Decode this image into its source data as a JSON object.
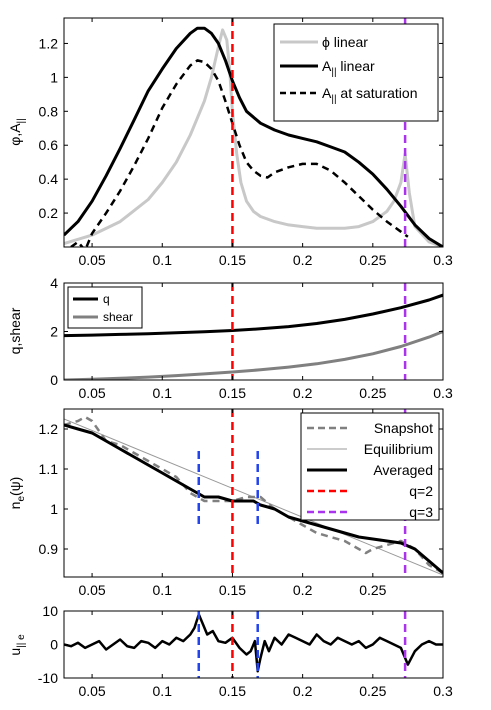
{
  "chart_data": [
    {
      "type": "line",
      "ylabel_base": "φ,A",
      "ylabel_sub": "||",
      "xlim": [
        0.03,
        0.3
      ],
      "ylim": [
        0,
        1.35
      ],
      "xticks": [
        "0.05",
        "0.1",
        "0.15",
        "0.2",
        "0.25",
        "0.3"
      ],
      "xtick_values": [
        0.05,
        0.1,
        0.15,
        0.2,
        0.25,
        0.3
      ],
      "yticks": [
        "0.2",
        "0.4",
        "0.6",
        "0.8",
        "1",
        "1.2"
      ],
      "ytick_values": [
        0.2,
        0.4,
        0.6,
        0.8,
        1,
        1.2
      ],
      "legend_position": "top-right",
      "vlines": [
        {
          "x": 0.15,
          "color": "#ff0000"
        },
        {
          "x": 0.273,
          "color": "#aa33ee"
        }
      ],
      "series": [
        {
          "name": "ϕ linear",
          "color": "#c8c8c8",
          "dash": "solid",
          "width": 3,
          "x": [
            0.03,
            0.05,
            0.07,
            0.09,
            0.1,
            0.11,
            0.12,
            0.13,
            0.135,
            0.14,
            0.143,
            0.146,
            0.148,
            0.15,
            0.153,
            0.156,
            0.16,
            0.165,
            0.17,
            0.18,
            0.19,
            0.2,
            0.21,
            0.22,
            0.23,
            0.24,
            0.25,
            0.26,
            0.265,
            0.27,
            0.273,
            0.276,
            0.28,
            0.29,
            0.3
          ],
          "y": [
            0.02,
            0.07,
            0.15,
            0.28,
            0.38,
            0.5,
            0.66,
            0.86,
            1.0,
            1.18,
            1.28,
            1.22,
            1.05,
            0.8,
            0.55,
            0.38,
            0.27,
            0.21,
            0.18,
            0.15,
            0.13,
            0.12,
            0.11,
            0.11,
            0.11,
            0.12,
            0.15,
            0.21,
            0.27,
            0.38,
            0.55,
            0.32,
            0.12,
            0.03,
            0.0
          ]
        },
        {
          "name": "A linear",
          "color": "#000000",
          "dash": "solid",
          "width": 3,
          "x": [
            0.03,
            0.04,
            0.05,
            0.06,
            0.07,
            0.08,
            0.09,
            0.1,
            0.11,
            0.12,
            0.125,
            0.13,
            0.135,
            0.14,
            0.145,
            0.15,
            0.155,
            0.16,
            0.17,
            0.18,
            0.19,
            0.2,
            0.21,
            0.22,
            0.23,
            0.24,
            0.25,
            0.26,
            0.27,
            0.28,
            0.29,
            0.3
          ],
          "y": [
            0.07,
            0.15,
            0.27,
            0.42,
            0.58,
            0.75,
            0.92,
            1.05,
            1.17,
            1.26,
            1.29,
            1.29,
            1.26,
            1.2,
            1.1,
            0.98,
            0.88,
            0.8,
            0.73,
            0.69,
            0.66,
            0.64,
            0.62,
            0.59,
            0.56,
            0.5,
            0.43,
            0.34,
            0.24,
            0.13,
            0.05,
            0.0
          ]
        },
        {
          "name": "A at saturation",
          "color": "#000000",
          "dash": "dashed",
          "width": 2.5,
          "x": [
            0.035,
            0.04,
            0.045,
            0.05,
            0.06,
            0.07,
            0.08,
            0.09,
            0.1,
            0.11,
            0.12,
            0.125,
            0.13,
            0.135,
            0.14,
            0.145,
            0.15,
            0.155,
            0.16,
            0.165,
            0.17,
            0.175,
            0.18,
            0.19,
            0.2,
            0.21,
            0.22,
            0.23,
            0.24,
            0.25,
            0.26,
            0.27,
            0.275
          ],
          "y": [
            0.0,
            0.03,
            -0.02,
            0.08,
            0.2,
            0.33,
            0.48,
            0.64,
            0.82,
            0.96,
            1.07,
            1.1,
            1.09,
            1.05,
            0.98,
            0.86,
            0.73,
            0.6,
            0.5,
            0.45,
            0.42,
            0.41,
            0.44,
            0.47,
            0.49,
            0.49,
            0.45,
            0.38,
            0.3,
            0.22,
            0.15,
            0.09,
            0.06
          ]
        }
      ]
    },
    {
      "type": "line",
      "ylabel": "q,shear",
      "xlim": [
        0.03,
        0.3
      ],
      "ylim": [
        0,
        4
      ],
      "xticks": [
        "0.05",
        "0.1",
        "0.15",
        "0.2",
        "0.25",
        "0.3"
      ],
      "xtick_values": [
        0.05,
        0.1,
        0.15,
        0.2,
        0.25,
        0.3
      ],
      "yticks": [
        "0",
        "2",
        "4"
      ],
      "ytick_values": [
        0,
        2,
        4
      ],
      "legend_position": "top-left",
      "vlines": [
        {
          "x": 0.15,
          "color": "#ff0000"
        },
        {
          "x": 0.273,
          "color": "#aa33ee"
        }
      ],
      "series": [
        {
          "name": "q",
          "color": "#000000",
          "dash": "solid",
          "width": 3,
          "x": [
            0.03,
            0.05,
            0.07,
            0.09,
            0.11,
            0.13,
            0.15,
            0.17,
            0.19,
            0.21,
            0.23,
            0.25,
            0.27,
            0.29,
            0.3
          ],
          "y": [
            1.83,
            1.85,
            1.88,
            1.91,
            1.95,
            1.99,
            2.04,
            2.11,
            2.2,
            2.33,
            2.5,
            2.72,
            2.98,
            3.3,
            3.5
          ]
        },
        {
          "name": "shear",
          "color": "#808080",
          "dash": "solid",
          "width": 3,
          "x": [
            0.03,
            0.05,
            0.07,
            0.09,
            0.11,
            0.13,
            0.15,
            0.17,
            0.19,
            0.21,
            0.23,
            0.25,
            0.27,
            0.29,
            0.3
          ],
          "y": [
            0.0,
            0.03,
            0.07,
            0.12,
            0.18,
            0.25,
            0.33,
            0.42,
            0.53,
            0.67,
            0.85,
            1.08,
            1.38,
            1.77,
            2.0
          ]
        }
      ]
    },
    {
      "type": "line",
      "ylabel_base": "n",
      "ylabel_sub": "e",
      "ylabel_tail": "(ψ)",
      "xlim": [
        0.03,
        0.3
      ],
      "ylim": [
        0.83,
        1.25
      ],
      "xticks": [
        "0.05",
        "0.1",
        "0.15",
        "0.2",
        "0.25"
      ],
      "xtick_values": [
        0.05,
        0.1,
        0.15,
        0.2,
        0.25
      ],
      "yticks": [
        "0.9",
        "1",
        "1.1",
        "1.2"
      ],
      "ytick_values": [
        0.9,
        1.0,
        1.1,
        1.2
      ],
      "legend_position": "top-right",
      "vlines": [
        {
          "x": 0.15,
          "color": "#ff0000"
        },
        {
          "x": 0.273,
          "color": "#aa33ee"
        },
        {
          "x": 0.126,
          "color": "#2244ee",
          "ymin": 0.95,
          "ymax": 1.145
        },
        {
          "x": 0.168,
          "color": "#2244ee",
          "ymin": 0.95,
          "ymax": 1.145
        }
      ],
      "legend": [
        {
          "label": "Snapshot",
          "color": "#808080",
          "dash": "dashed",
          "width": 2.5
        },
        {
          "label": "Equilibrium",
          "color": "#999999",
          "dash": "solid",
          "width": 1
        },
        {
          "label": "Averaged",
          "color": "#000000",
          "dash": "solid",
          "width": 3
        },
        {
          "label": "q=2",
          "color": "#ff0000",
          "dash": "dashed",
          "width": 2.5
        },
        {
          "label": "q=3",
          "color": "#aa33ee",
          "dash": "dashed",
          "width": 2.5
        }
      ],
      "series": [
        {
          "name": "Equilibrium",
          "color": "#999999",
          "dash": "solid",
          "width": 1,
          "x": [
            0.03,
            0.3
          ],
          "y": [
            1.225,
            0.835
          ]
        },
        {
          "name": "Snapshot",
          "color": "#808080",
          "dash": "dashed",
          "width": 2.5,
          "x": [
            0.03,
            0.04,
            0.045,
            0.05,
            0.06,
            0.07,
            0.08,
            0.09,
            0.1,
            0.11,
            0.12,
            0.13,
            0.14,
            0.15,
            0.16,
            0.17,
            0.18,
            0.19,
            0.2,
            0.21,
            0.22,
            0.23,
            0.24,
            0.245,
            0.25,
            0.26,
            0.27,
            0.28,
            0.29,
            0.3
          ],
          "y": [
            1.21,
            1.22,
            1.23,
            1.22,
            1.17,
            1.16,
            1.14,
            1.12,
            1.1,
            1.08,
            1.04,
            1.02,
            1.02,
            1.02,
            1.03,
            1.03,
            1.0,
            0.98,
            0.96,
            0.94,
            0.93,
            0.92,
            0.9,
            0.89,
            0.9,
            0.91,
            0.92,
            0.9,
            0.86,
            0.84
          ]
        },
        {
          "name": "Averaged",
          "color": "#000000",
          "dash": "solid",
          "width": 3,
          "x": [
            0.03,
            0.04,
            0.05,
            0.06,
            0.07,
            0.08,
            0.09,
            0.1,
            0.11,
            0.12,
            0.13,
            0.14,
            0.15,
            0.16,
            0.165,
            0.17,
            0.18,
            0.19,
            0.2,
            0.21,
            0.22,
            0.23,
            0.24,
            0.25,
            0.26,
            0.27,
            0.28,
            0.29,
            0.3
          ],
          "y": [
            1.21,
            1.2,
            1.19,
            1.17,
            1.15,
            1.13,
            1.11,
            1.09,
            1.07,
            1.05,
            1.03,
            1.03,
            1.02,
            1.02,
            1.02,
            1.01,
            1.0,
            0.98,
            0.97,
            0.96,
            0.95,
            0.94,
            0.93,
            0.925,
            0.92,
            0.915,
            0.9,
            0.87,
            0.84
          ]
        }
      ]
    },
    {
      "type": "line",
      "ylabel_base": "u",
      "ylabel_sub": "|| e",
      "xlim": [
        0.03,
        0.3
      ],
      "ylim": [
        -10,
        10
      ],
      "xticks": [
        "0.05",
        "0.1",
        "0.15",
        "0.2",
        "0.25",
        "0.3"
      ],
      "xtick_values": [
        0.05,
        0.1,
        0.15,
        0.2,
        0.25,
        0.3
      ],
      "yticks": [
        "-10",
        "0",
        "10"
      ],
      "ytick_values": [
        -10,
        0,
        10
      ],
      "vlines": [
        {
          "x": 0.15,
          "color": "#ff0000"
        },
        {
          "x": 0.273,
          "color": "#aa33ee"
        },
        {
          "x": 0.126,
          "color": "#2244ee"
        },
        {
          "x": 0.168,
          "color": "#2244ee"
        }
      ],
      "series": [
        {
          "name": "",
          "color": "#000000",
          "dash": "solid",
          "width": 2.5,
          "x": [
            0.03,
            0.035,
            0.04,
            0.045,
            0.05,
            0.055,
            0.06,
            0.065,
            0.07,
            0.075,
            0.08,
            0.085,
            0.09,
            0.095,
            0.1,
            0.105,
            0.11,
            0.115,
            0.12,
            0.123,
            0.126,
            0.129,
            0.132,
            0.136,
            0.14,
            0.145,
            0.15,
            0.155,
            0.16,
            0.163,
            0.166,
            0.168,
            0.17,
            0.173,
            0.176,
            0.18,
            0.185,
            0.19,
            0.195,
            0.2,
            0.205,
            0.21,
            0.215,
            0.22,
            0.225,
            0.23,
            0.235,
            0.24,
            0.245,
            0.25,
            0.255,
            0.26,
            0.265,
            0.27,
            0.275,
            0.28,
            0.285,
            0.29,
            0.295,
            0.3
          ],
          "y": [
            0,
            -0.5,
            0.5,
            -1,
            0,
            1,
            -1.5,
            0,
            1.5,
            -0.5,
            -1,
            1,
            0.5,
            -1,
            1,
            0,
            2,
            1,
            3,
            5,
            9,
            6,
            3,
            4,
            1,
            0.5,
            2,
            -1,
            -3,
            -2,
            1,
            -8,
            -4,
            1,
            -2,
            2,
            0,
            3,
            2,
            1,
            0,
            3,
            1,
            0,
            2,
            1,
            0,
            1,
            -1,
            0,
            2,
            1,
            0,
            -1,
            -6,
            -2,
            0,
            1,
            0,
            0
          ]
        }
      ]
    }
  ]
}
